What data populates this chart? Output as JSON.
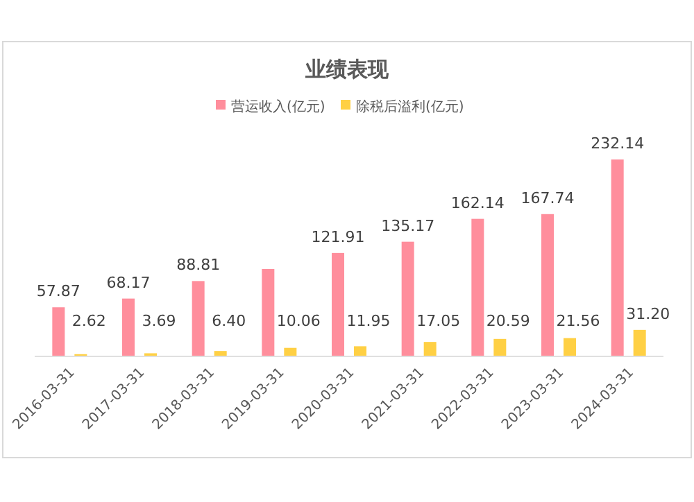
{
  "chart_data": {
    "type": "bar",
    "title": "业绩表现",
    "categories": [
      "2016-03-31",
      "2017-03-31",
      "2018-03-31",
      "2019-03-31",
      "2020-03-31",
      "2021-03-31",
      "2022-03-31",
      "2023-03-31",
      "2024-03-31"
    ],
    "series": [
      {
        "name": "营运收入(亿元)",
        "color": "#ff8e9c",
        "values": [
          57.87,
          68.17,
          88.81,
          103,
          121.91,
          135.17,
          162.14,
          167.74,
          232.14
        ],
        "value_labels": [
          "57.87",
          "68.17",
          "88.81",
          null,
          "121.91",
          "135.17",
          "162.14",
          "167.74",
          "232.14"
        ]
      },
      {
        "name": "除税后溢利(亿元)",
        "color": "#ffd044",
        "values": [
          2.62,
          3.69,
          6.4,
          10.06,
          11.95,
          17.05,
          20.59,
          21.56,
          31.2
        ],
        "value_labels": [
          "2.62",
          "3.69",
          "6.40",
          "10.06",
          "11.95",
          "17.05",
          "20.59",
          "21.56",
          "31.20"
        ]
      }
    ],
    "legend": "top"
  }
}
